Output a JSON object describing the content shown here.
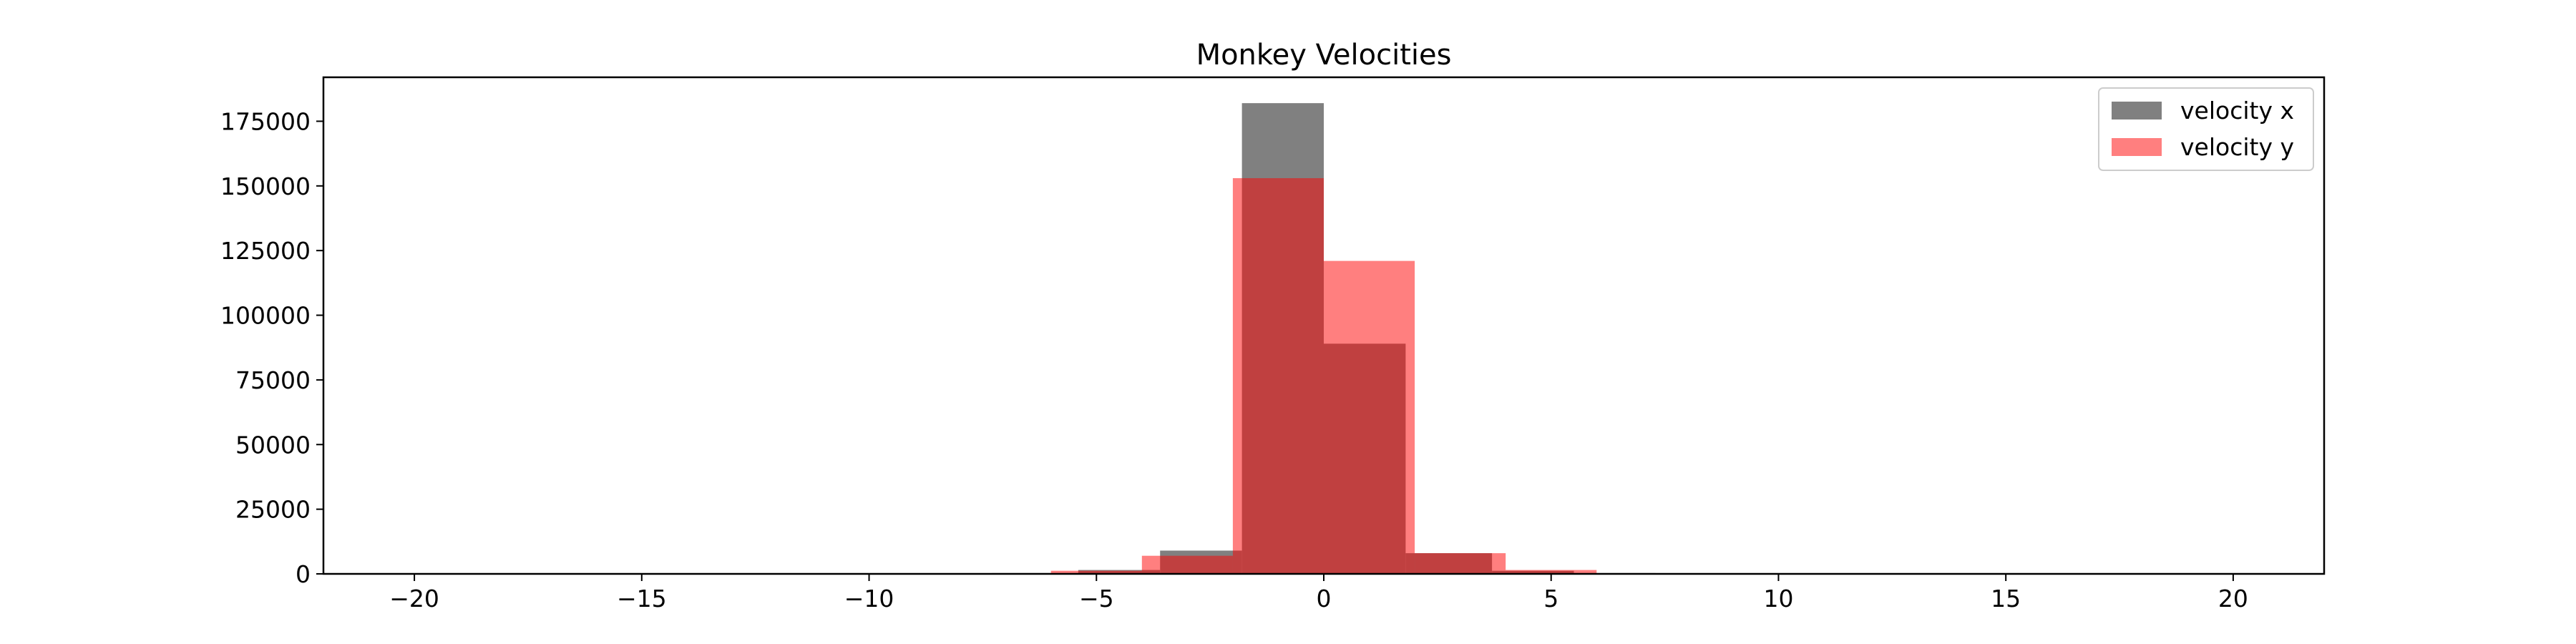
{
  "chart_data": {
    "type": "bar",
    "title": "Monkey Velocities",
    "xlabel": "",
    "ylabel": "",
    "xlim": [
      -22,
      22
    ],
    "ylim": [
      0,
      192000
    ],
    "x_ticks": [
      {
        "value": -20,
        "label": "−20"
      },
      {
        "value": -15,
        "label": "−15"
      },
      {
        "value": -10,
        "label": "−10"
      },
      {
        "value": -5,
        "label": "−5"
      },
      {
        "value": 0,
        "label": "0"
      },
      {
        "value": 5,
        "label": "5"
      },
      {
        "value": 10,
        "label": "10"
      },
      {
        "value": 15,
        "label": "15"
      },
      {
        "value": 20,
        "label": "20"
      }
    ],
    "y_ticks": [
      {
        "value": 0,
        "label": "0"
      },
      {
        "value": 25000,
        "label": "25000"
      },
      {
        "value": 50000,
        "label": "50000"
      },
      {
        "value": 75000,
        "label": "75000"
      },
      {
        "value": 100000,
        "label": "100000"
      },
      {
        "value": 125000,
        "label": "125000"
      },
      {
        "value": 150000,
        "label": "150000"
      },
      {
        "value": 175000,
        "label": "175000"
      }
    ],
    "legend_position": "top-right",
    "grid": false,
    "series": [
      {
        "name": "velocity x",
        "color": "#808080",
        "bins": [
          {
            "x0": -7.3,
            "x1": -5.4,
            "value": 300
          },
          {
            "x0": -5.4,
            "x1": -3.6,
            "value": 1500
          },
          {
            "x0": -3.6,
            "x1": -1.8,
            "value": 9000
          },
          {
            "x0": -1.8,
            "x1": 0.0,
            "value": 182000
          },
          {
            "x0": 0.0,
            "x1": 1.8,
            "value": 89000
          },
          {
            "x0": 1.8,
            "x1": 3.7,
            "value": 8000
          },
          {
            "x0": 3.7,
            "x1": 5.5,
            "value": 1200
          },
          {
            "x0": 5.5,
            "x1": 7.3,
            "value": 300
          }
        ]
      },
      {
        "name": "velocity y",
        "color": "#ff8080",
        "bins": [
          {
            "x0": -6.0,
            "x1": -4.0,
            "value": 1200
          },
          {
            "x0": -4.0,
            "x1": -2.0,
            "value": 7000
          },
          {
            "x0": -2.0,
            "x1": 0.0,
            "value": 153000
          },
          {
            "x0": 0.0,
            "x1": 2.0,
            "value": 121000
          },
          {
            "x0": 2.0,
            "x1": 4.0,
            "value": 8000
          },
          {
            "x0": 4.0,
            "x1": 6.0,
            "value": 1500
          }
        ]
      }
    ]
  }
}
